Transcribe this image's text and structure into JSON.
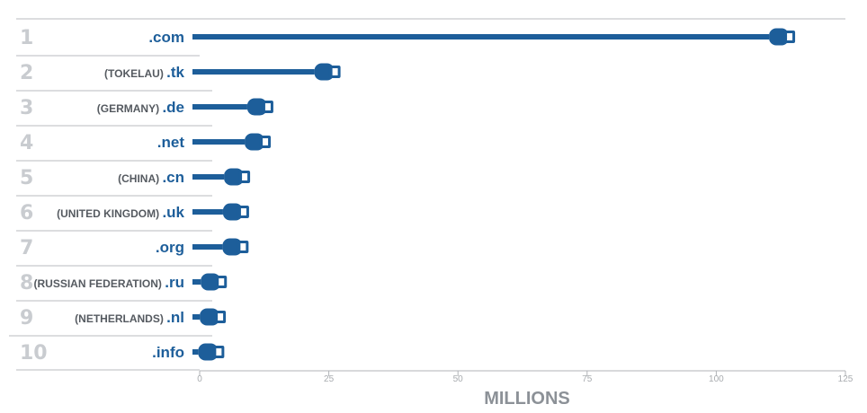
{
  "chart_data": {
    "type": "bar",
    "xlabel": "MILLIONS",
    "xlim": [
      0,
      125
    ],
    "xticks": [
      "0",
      "25",
      "50",
      "75",
      "100",
      "125"
    ],
    "grid": false,
    "rows": [
      {
        "rank": "1",
        "country": "",
        "tld": ".com",
        "value": 113
      },
      {
        "rank": "2",
        "country": "(TOKELAU)",
        "tld": ".tk",
        "value": 25
      },
      {
        "rank": "3",
        "country": "(GERMANY)",
        "tld": ".de",
        "value": 12
      },
      {
        "rank": "4",
        "country": "",
        "tld": ".net",
        "value": 11.5
      },
      {
        "rank": "5",
        "country": "(CHINA)",
        "tld": ".cn",
        "value": 7.5
      },
      {
        "rank": "6",
        "country": "(UNITED KINGDOM)",
        "tld": ".uk",
        "value": 7.3
      },
      {
        "rank": "7",
        "country": "",
        "tld": ".org",
        "value": 7.2
      },
      {
        "rank": "8",
        "country": "(RUSSIAN FEDERATION)",
        "tld": ".ru",
        "value": 3
      },
      {
        "rank": "9",
        "country": "(NETHERLANDS)",
        "tld": ".nl",
        "value": 2.8
      },
      {
        "rank": "10",
        "country": "",
        "tld": ".info",
        "value": 2.5
      }
    ]
  },
  "colors": {
    "bar": "#1d5e9a",
    "connector_inner": "#ffffff",
    "rank": "#c9ccd0",
    "country": "#555a60",
    "tld": "#1d5e9a",
    "axis": "#b0b3b7",
    "axis_title": "#8c9197",
    "separator": "#b8bbbf"
  },
  "icons": {
    "bar_end": "usb-plug-icon"
  }
}
